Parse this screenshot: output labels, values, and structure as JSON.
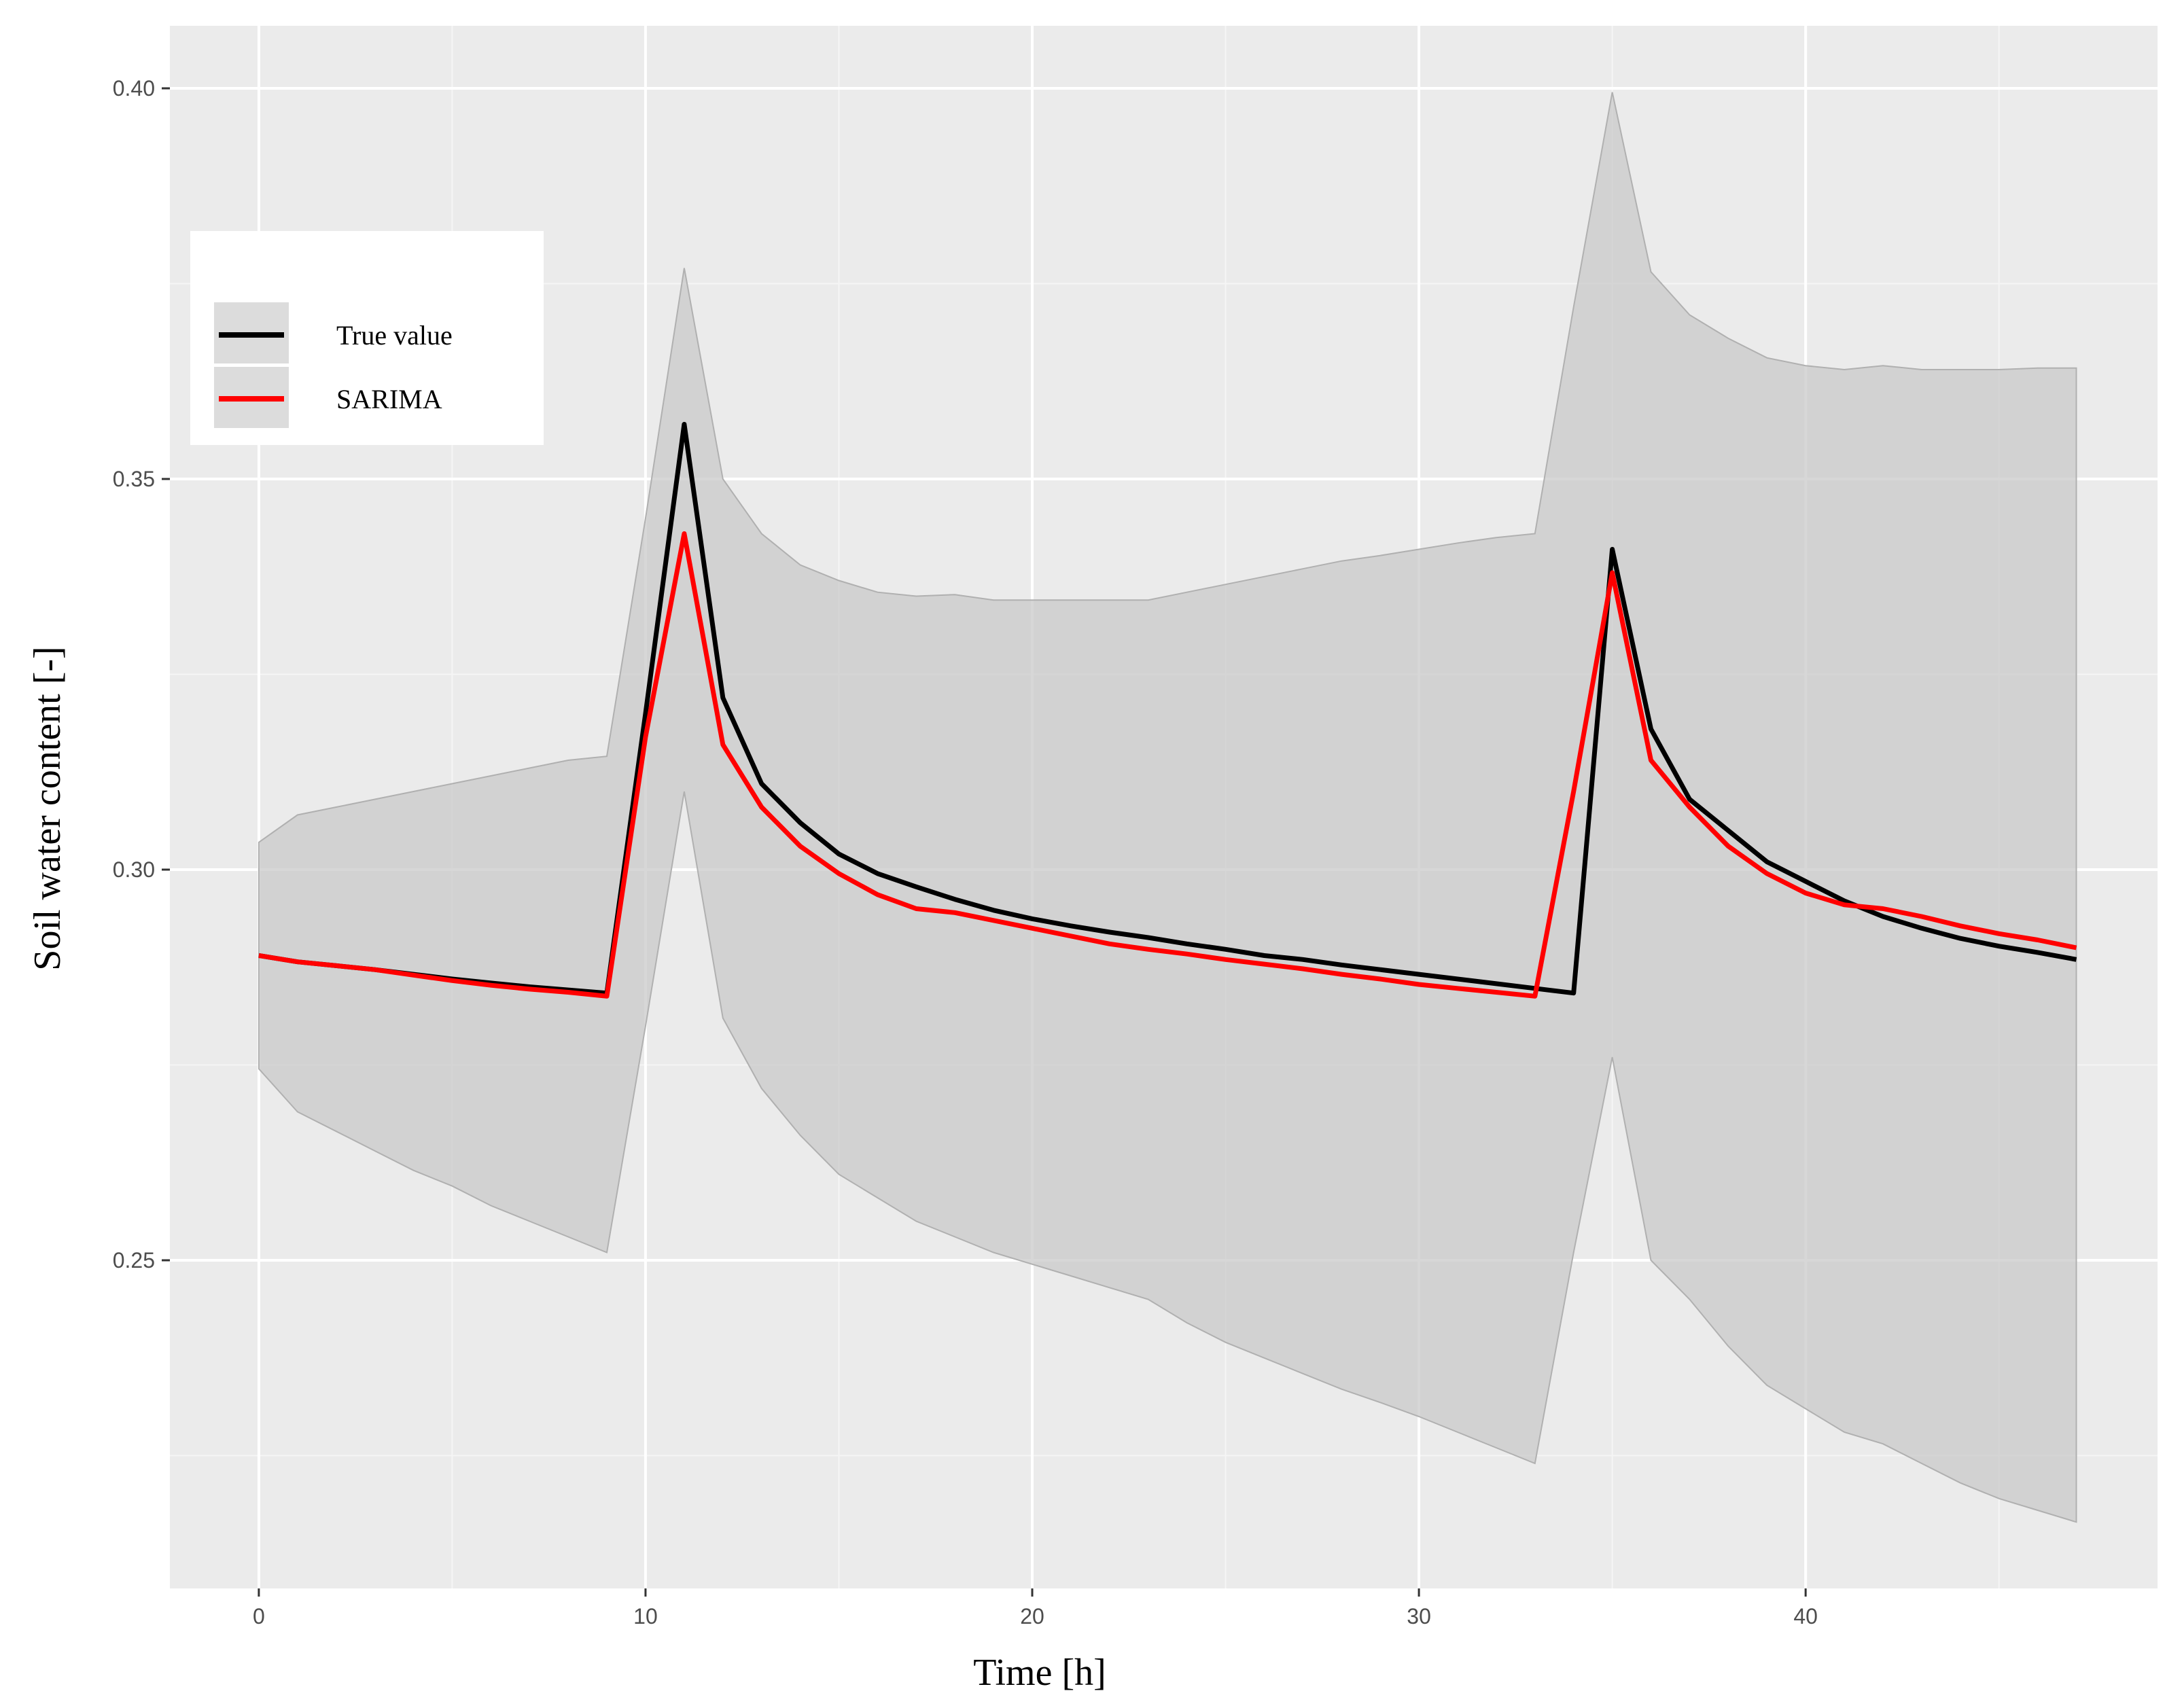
{
  "chart_data": {
    "type": "line",
    "xlabel": "Time [h]",
    "ylabel": "Soil water content [-]",
    "xlim": [
      -2.3,
      49.1
    ],
    "ylim": [
      0.208,
      0.408
    ],
    "x_ticks": [
      0,
      10,
      20,
      30,
      40
    ],
    "x_tick_labels": [
      "0",
      "10",
      "20",
      "30",
      "40"
    ],
    "y_ticks": [
      0.25,
      0.3,
      0.35,
      0.4
    ],
    "y_tick_labels": [
      "0.25",
      "0.30",
      "0.35",
      "0.40"
    ],
    "grid": true,
    "legend_position": "top-left",
    "x": [
      0,
      1,
      2,
      3,
      4,
      5,
      6,
      7,
      8,
      9,
      10,
      11,
      12,
      13,
      14,
      15,
      16,
      17,
      18,
      19,
      20,
      21,
      22,
      23,
      24,
      25,
      26,
      27,
      28,
      29,
      30,
      31,
      32,
      33,
      34,
      35,
      36,
      37,
      38,
      39,
      40,
      41,
      42,
      43,
      44,
      45,
      46,
      47
    ],
    "series": [
      {
        "name": "True value",
        "color": "#000000",
        "values": [
          0.289,
          0.2882,
          0.2877,
          0.2872,
          0.2866,
          0.286,
          0.2855,
          0.285,
          0.2846,
          0.2842,
          0.32,
          0.357,
          0.322,
          0.311,
          0.306,
          0.302,
          0.2995,
          0.2978,
          0.2962,
          0.2948,
          0.2937,
          0.2928,
          0.292,
          0.2913,
          0.2905,
          0.2898,
          0.289,
          0.2885,
          0.2878,
          0.2872,
          0.2866,
          0.286,
          0.2854,
          0.2848,
          0.2842,
          0.341,
          0.318,
          0.309,
          0.305,
          0.301,
          0.2985,
          0.296,
          0.294,
          0.2925,
          0.2912,
          0.2902,
          0.2894,
          0.2885
        ]
      },
      {
        "name": "SARIMA",
        "color": "#ff0000",
        "values": [
          0.289,
          0.2882,
          0.2877,
          0.2872,
          0.2865,
          0.2858,
          0.2852,
          0.2847,
          0.2843,
          0.2838,
          0.317,
          0.343,
          0.316,
          0.308,
          0.303,
          0.2995,
          0.2968,
          0.295,
          0.2945,
          0.2935,
          0.2925,
          0.2915,
          0.2905,
          0.2898,
          0.2892,
          0.2885,
          0.2879,
          0.2873,
          0.2866,
          0.286,
          0.2853,
          0.2848,
          0.2843,
          0.2838,
          0.31,
          0.338,
          0.314,
          0.308,
          0.303,
          0.2995,
          0.297,
          0.2955,
          0.295,
          0.294,
          0.2928,
          0.2918,
          0.291,
          0.29
        ]
      }
    ],
    "interval": {
      "upper": [
        0.3035,
        0.307,
        0.308,
        0.309,
        0.31,
        0.311,
        0.312,
        0.313,
        0.314,
        0.3145,
        0.345,
        0.377,
        0.35,
        0.343,
        0.339,
        0.337,
        0.3355,
        0.335,
        0.3352,
        0.3345,
        0.3345,
        0.3345,
        0.3345,
        0.3345,
        0.3355,
        0.3365,
        0.3375,
        0.3385,
        0.3395,
        0.3402,
        0.341,
        0.3418,
        0.3425,
        0.343,
        0.372,
        0.3995,
        0.3765,
        0.371,
        0.368,
        0.3655,
        0.3645,
        0.364,
        0.3645,
        0.364,
        0.364,
        0.364,
        0.3642,
        0.3642
      ],
      "lower": [
        0.2745,
        0.269,
        0.2665,
        0.264,
        0.2615,
        0.2595,
        0.257,
        0.255,
        0.253,
        0.251,
        0.28,
        0.31,
        0.281,
        0.272,
        0.266,
        0.261,
        0.258,
        0.255,
        0.253,
        0.251,
        0.2495,
        0.248,
        0.2465,
        0.245,
        0.242,
        0.2395,
        0.2375,
        0.2355,
        0.2335,
        0.2318,
        0.23,
        0.228,
        0.226,
        0.224,
        0.251,
        0.276,
        0.25,
        0.245,
        0.239,
        0.234,
        0.231,
        0.228,
        0.2265,
        0.224,
        0.2215,
        0.2195,
        0.218,
        0.2165
      ],
      "color": "#c9c9c9"
    }
  }
}
